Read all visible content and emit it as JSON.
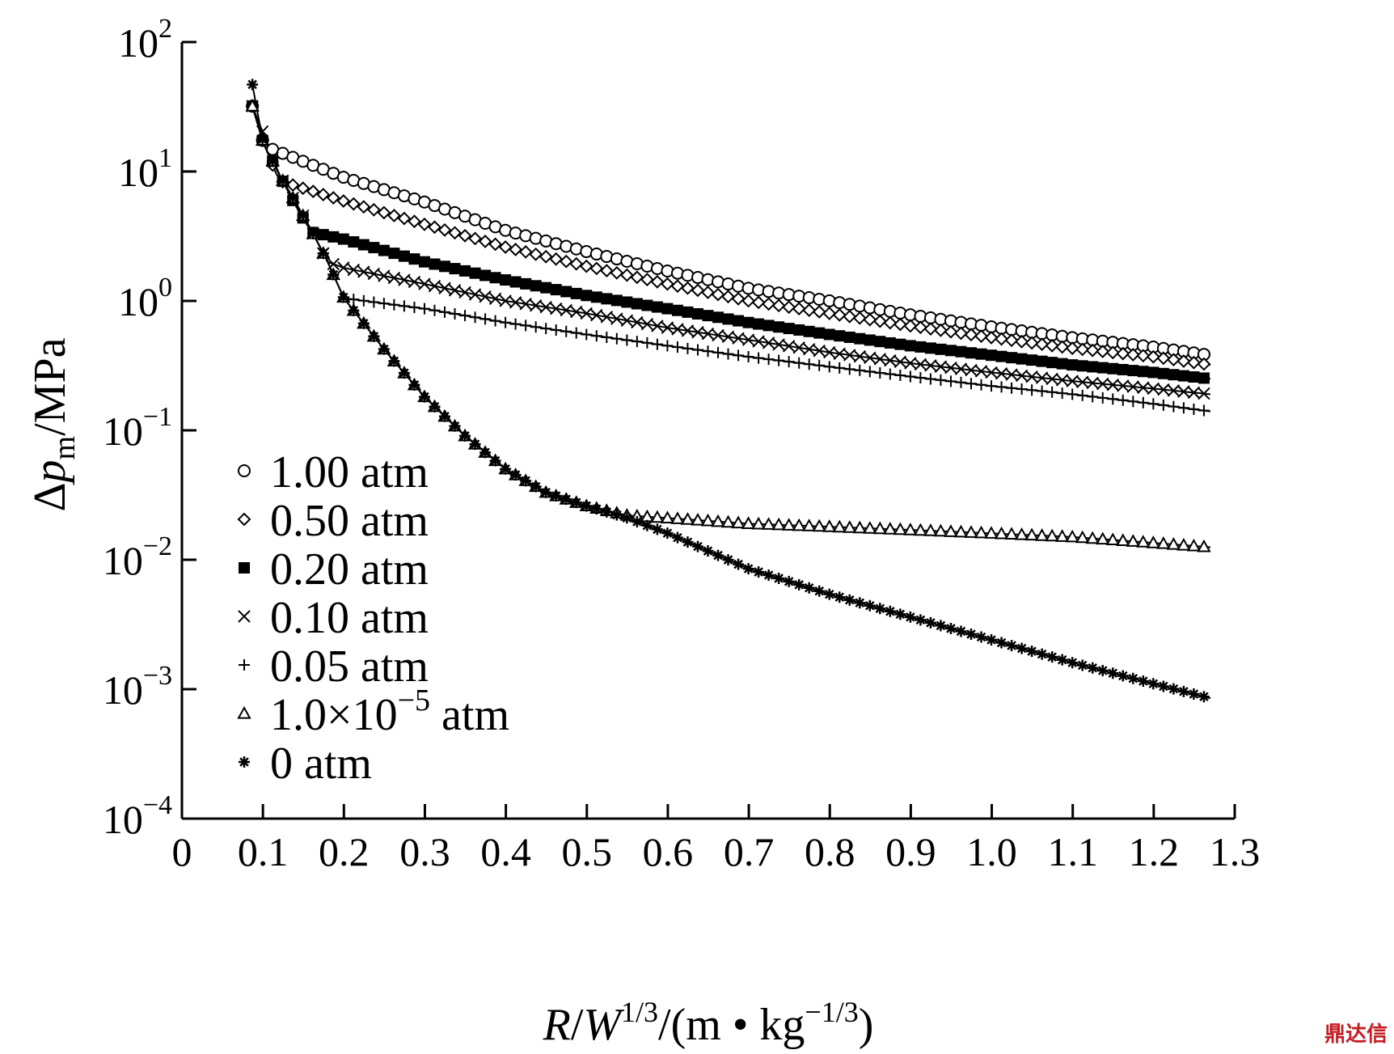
{
  "chart_data": {
    "type": "line",
    "xlabel": {
      "R": "R",
      "slash1": "/",
      "W": "W",
      "W_sup": "1/3",
      "rest": "/(m • kg",
      "kg_sup": "−1/3",
      "close": ")"
    },
    "ylabel": {
      "delta": "Δ",
      "p": "p",
      "p_sub": "m",
      "rest": "/MPa"
    },
    "xlim": [
      0,
      1.3
    ],
    "ylim": [
      0.0001,
      100
    ],
    "yscale": "log",
    "x_ticks": [
      "0",
      "0.1",
      "0.2",
      "0.3",
      "0.4",
      "0.5",
      "0.6",
      "0.7",
      "0.8",
      "0.9",
      "1.0",
      "1.1",
      "1.2",
      "1.3"
    ],
    "y_ticks": [
      {
        "base": "10",
        "exp": "2"
      },
      {
        "base": "10",
        "exp": "1"
      },
      {
        "base": "10",
        "exp": "0"
      },
      {
        "base": "10",
        "exp": "−1"
      },
      {
        "base": "10",
        "exp": "−2"
      },
      {
        "base": "10",
        "exp": "−3"
      },
      {
        "base": "10",
        "exp": "−4"
      }
    ],
    "legend_position": "lower-left",
    "series": [
      {
        "name": "1.00 atm",
        "marker": "circle",
        "points": [
          [
            0.087,
            32
          ],
          [
            0.1,
            17
          ],
          [
            0.11,
            15
          ],
          [
            0.2,
            9
          ],
          [
            0.3,
            5.8
          ],
          [
            0.4,
            3.5
          ],
          [
            0.5,
            2.4
          ],
          [
            0.6,
            1.7
          ],
          [
            0.7,
            1.25
          ],
          [
            0.8,
            1.0
          ],
          [
            0.9,
            0.78
          ],
          [
            1.0,
            0.63
          ],
          [
            1.1,
            0.52
          ],
          [
            1.2,
            0.44
          ],
          [
            1.27,
            0.38
          ]
        ]
      },
      {
        "name": "0.50 atm",
        "marker": "diamond",
        "points": [
          [
            0.087,
            32
          ],
          [
            0.1,
            17
          ],
          [
            0.12,
            8.5
          ],
          [
            0.2,
            5.9
          ],
          [
            0.3,
            3.9
          ],
          [
            0.4,
            2.6
          ],
          [
            0.5,
            1.85
          ],
          [
            0.6,
            1.35
          ],
          [
            0.7,
            1.0
          ],
          [
            0.8,
            0.8
          ],
          [
            0.9,
            0.64
          ],
          [
            1.0,
            0.52
          ],
          [
            1.1,
            0.43
          ],
          [
            1.2,
            0.37
          ],
          [
            1.27,
            0.32
          ]
        ]
      },
      {
        "name": "0.20 atm",
        "marker": "square",
        "points": [
          [
            0.087,
            32
          ],
          [
            0.1,
            17
          ],
          [
            0.12,
            9.5
          ],
          [
            0.14,
            5.5
          ],
          [
            0.16,
            3.4
          ],
          [
            0.2,
            3.0
          ],
          [
            0.3,
            2.0
          ],
          [
            0.4,
            1.45
          ],
          [
            0.5,
            1.1
          ],
          [
            0.6,
            0.87
          ],
          [
            0.7,
            0.68
          ],
          [
            0.8,
            0.55
          ],
          [
            0.9,
            0.45
          ],
          [
            1.0,
            0.38
          ],
          [
            1.1,
            0.32
          ],
          [
            1.2,
            0.28
          ],
          [
            1.27,
            0.25
          ]
        ]
      },
      {
        "name": "0.10 atm",
        "marker": "x",
        "points": [
          [
            0.087,
            32
          ],
          [
            0.1,
            20
          ],
          [
            0.12,
            9.5
          ],
          [
            0.14,
            5.8
          ],
          [
            0.16,
            3.5
          ],
          [
            0.18,
            2.0
          ],
          [
            0.2,
            1.8
          ],
          [
            0.3,
            1.35
          ],
          [
            0.4,
            1.0
          ],
          [
            0.5,
            0.8
          ],
          [
            0.6,
            0.62
          ],
          [
            0.7,
            0.5
          ],
          [
            0.8,
            0.4
          ],
          [
            0.9,
            0.33
          ],
          [
            1.0,
            0.28
          ],
          [
            1.1,
            0.24
          ],
          [
            1.2,
            0.21
          ],
          [
            1.27,
            0.19
          ]
        ]
      },
      {
        "name": "0.05 atm",
        "marker": "plus",
        "points": [
          [
            0.087,
            32
          ],
          [
            0.1,
            17
          ],
          [
            0.12,
            9.5
          ],
          [
            0.14,
            5.8
          ],
          [
            0.16,
            3.5
          ],
          [
            0.18,
            2.0
          ],
          [
            0.2,
            1.05
          ],
          [
            0.3,
            0.87
          ],
          [
            0.4,
            0.68
          ],
          [
            0.5,
            0.55
          ],
          [
            0.6,
            0.45
          ],
          [
            0.7,
            0.37
          ],
          [
            0.8,
            0.31
          ],
          [
            0.9,
            0.26
          ],
          [
            1.0,
            0.22
          ],
          [
            1.1,
            0.19
          ],
          [
            1.2,
            0.16
          ],
          [
            1.27,
            0.14
          ]
        ]
      },
      {
        "name": "1.0×10⁻⁵ atm",
        "marker": "triangle",
        "points": [
          [
            0.087,
            32
          ],
          [
            0.1,
            17
          ],
          [
            0.12,
            9.5
          ],
          [
            0.14,
            5.8
          ],
          [
            0.16,
            3.5
          ],
          [
            0.18,
            2.0
          ],
          [
            0.2,
            1.05
          ],
          [
            0.25,
            0.42
          ],
          [
            0.3,
            0.18
          ],
          [
            0.35,
            0.09
          ],
          [
            0.4,
            0.05
          ],
          [
            0.45,
            0.033
          ],
          [
            0.5,
            0.026
          ],
          [
            0.55,
            0.022
          ],
          [
            0.6,
            0.021
          ],
          [
            0.7,
            0.019
          ],
          [
            0.8,
            0.018
          ],
          [
            0.9,
            0.017
          ],
          [
            1.0,
            0.016
          ],
          [
            1.1,
            0.015
          ],
          [
            1.2,
            0.0135
          ],
          [
            1.27,
            0.0125
          ]
        ]
      },
      {
        "name": "0 atm",
        "marker": "asterisk",
        "points": [
          [
            0.087,
            47
          ],
          [
            0.1,
            17
          ],
          [
            0.12,
            9.5
          ],
          [
            0.14,
            5.8
          ],
          [
            0.16,
            3.5
          ],
          [
            0.18,
            2.0
          ],
          [
            0.2,
            1.05
          ],
          [
            0.25,
            0.42
          ],
          [
            0.3,
            0.18
          ],
          [
            0.35,
            0.09
          ],
          [
            0.4,
            0.05
          ],
          [
            0.45,
            0.033
          ],
          [
            0.5,
            0.026
          ],
          [
            0.55,
            0.021
          ],
          [
            0.6,
            0.016
          ],
          [
            0.7,
            0.0085
          ],
          [
            0.8,
            0.0054
          ],
          [
            0.9,
            0.0036
          ],
          [
            1.0,
            0.0024
          ],
          [
            1.1,
            0.0016
          ],
          [
            1.2,
            0.0011
          ],
          [
            1.27,
            0.00085
          ]
        ]
      }
    ]
  },
  "legend": [
    {
      "marker": "circle",
      "label": "1.00 atm"
    },
    {
      "marker": "diamond",
      "label": "0.50 atm"
    },
    {
      "marker": "square",
      "label": "0.20 atm"
    },
    {
      "marker": "x",
      "label": "0.10 atm"
    },
    {
      "marker": "plus",
      "label": "0.05 atm"
    },
    {
      "marker": "triangle",
      "label_base": "1.0×10",
      "label_exp": "−5",
      "label_unit": " atm"
    },
    {
      "marker": "asterisk",
      "label": "0 atm"
    }
  ],
  "watermark": "鼎达信"
}
